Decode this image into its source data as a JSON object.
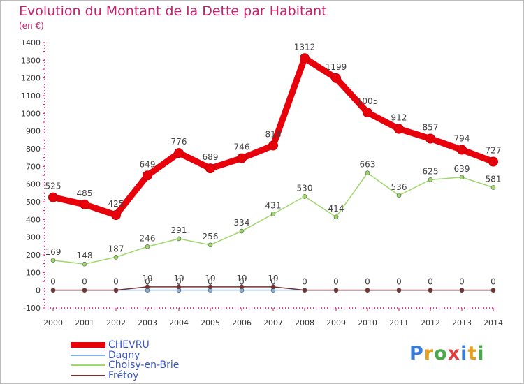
{
  "title": "Evolution du Montant de la Dette par Habitant",
  "unit": "(en €)",
  "logo": {
    "text": "Proxiti",
    "letter_colors": [
      "#3a7bd5",
      "#e8a020",
      "#4aa84a",
      "#e04040",
      "#3a7bd5",
      "#e8a020",
      "#4aa84a"
    ]
  },
  "chart_data": {
    "type": "line",
    "title": "Evolution du Montant de la Dette par Habitant",
    "ylabel": "(en €)",
    "xlabel": "",
    "x": [
      "2000",
      "2001",
      "2002",
      "2003",
      "2004",
      "2005",
      "2006",
      "2007",
      "2008",
      "2009",
      "2010",
      "2011",
      "2012",
      "2013",
      "2014"
    ],
    "ylim": [
      -100,
      1400
    ],
    "yticks": [
      "-100",
      "0",
      "100",
      "200",
      "300",
      "400",
      "500",
      "600",
      "700",
      "800",
      "900",
      "1000",
      "1100",
      "1200",
      "1300",
      "1400"
    ],
    "grid": false,
    "legend_position": "bottom-left",
    "series": [
      {
        "name": "CHEVRU",
        "color": "#e8000b",
        "emphasis": true,
        "values": [
          525,
          485,
          425,
          649,
          776,
          689,
          746,
          818,
          1312,
          1199,
          1005,
          912,
          857,
          794,
          727
        ],
        "labels": [
          "525",
          "485",
          "425",
          "649",
          "776",
          "689",
          "746",
          "818",
          "1312",
          "1199",
          "1005",
          "912",
          "857",
          "794",
          "727"
        ]
      },
      {
        "name": "Dagny",
        "color": "#7fb2e0",
        "emphasis": false,
        "values": [
          0,
          0,
          0,
          0,
          0,
          0,
          0,
          0,
          0,
          0,
          0,
          0,
          0,
          0,
          0
        ],
        "labels": [
          "0",
          "0",
          "0",
          "0",
          "0",
          "0",
          "0",
          "0",
          "0",
          "0",
          "0",
          "0",
          "0",
          "0",
          "0"
        ]
      },
      {
        "name": "Choisy-en-Brie",
        "color": "#9ed86a",
        "emphasis": false,
        "values": [
          169,
          148,
          187,
          246,
          291,
          256,
          334,
          431,
          530,
          414,
          663,
          536,
          625,
          639,
          581
        ],
        "labels": [
          "169",
          "148",
          "187",
          "246",
          "291",
          "256",
          "334",
          "431",
          "530",
          "414",
          "663",
          "536",
          "625",
          "639",
          "581"
        ]
      },
      {
        "name": "Frétoy",
        "color": "#7a2e2e",
        "emphasis": false,
        "values": [
          0,
          0,
          0,
          19,
          19,
          19,
          19,
          19,
          0,
          0,
          0,
          0,
          0,
          0,
          0
        ],
        "labels": [
          "",
          "",
          "",
          "19",
          "19",
          "19",
          "19",
          "19",
          "",
          "",
          "",
          "",
          "",
          "",
          ""
        ]
      }
    ]
  }
}
